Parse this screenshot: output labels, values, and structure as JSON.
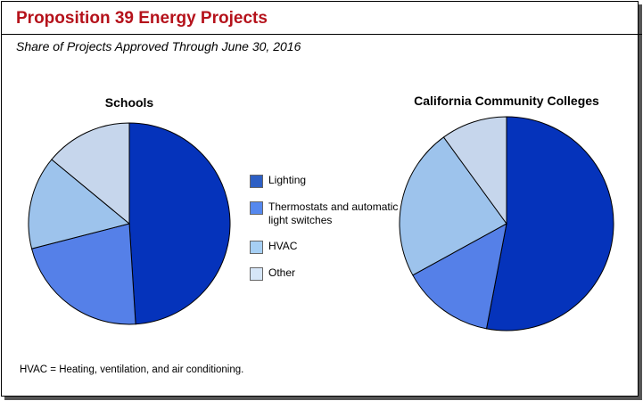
{
  "title": "Proposition 39 Energy Projects",
  "subtitle": "Share of Projects Approved Through June 30, 2016",
  "footnote": "HVAC  = Heating, ventilation, and air conditioning.",
  "chart_data": [
    {
      "type": "pie",
      "title": "Schools",
      "categories": [
        "Lighting",
        "Thermostats and automatic light switches",
        "HVAC",
        "Other"
      ],
      "values": [
        49,
        22,
        15,
        14
      ],
      "colors": [
        "#0533bb",
        "#5580e8",
        "#9dc3ec",
        "#c6d6ec"
      ]
    },
    {
      "type": "pie",
      "title": "California Community Colleges",
      "categories": [
        "Lighting",
        "Thermostats and automatic light switches",
        "HVAC",
        "Other"
      ],
      "values": [
        53,
        14,
        23,
        10
      ],
      "colors": [
        "#0533bb",
        "#5580e8",
        "#9dc3ec",
        "#c6d6ec"
      ]
    }
  ],
  "legend": {
    "items": [
      {
        "label": "Lighting",
        "color": "#2d5fc4"
      },
      {
        "label": "Thermostats and automatic light switches",
        "color": "#5588ee"
      },
      {
        "label": "HVAC",
        "color": "#a6cff4"
      },
      {
        "label": "Other",
        "color": "#d6e6f8"
      }
    ]
  }
}
